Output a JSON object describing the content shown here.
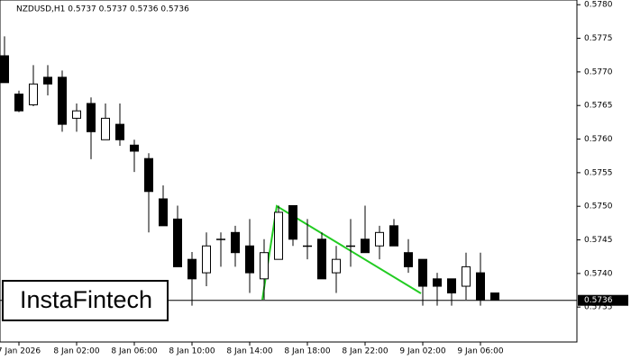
{
  "chart_data": {
    "type": "candlestick",
    "title": "NZDUSD,H1  0.5737 0.5737 0.5736 0.5736",
    "categories": [
      null,
      "7 Jan 2026",
      null,
      null,
      null,
      "8 Jan 02:00",
      null,
      null,
      null,
      "8 Jan 06:00",
      null,
      null,
      null,
      "8 Jan 10:00",
      null,
      null,
      null,
      "8 Jan 14:00",
      null,
      null,
      null,
      "8 Jan 18:00",
      null,
      null,
      null,
      "8 Jan 22:00",
      null,
      null,
      null,
      "9 Jan 02:00",
      null,
      null,
      null,
      "9 Jan 06:00",
      null
    ],
    "open": [
      0.57724,
      0.57667,
      0.57651,
      0.57692,
      0.57692,
      0.57631,
      0.57653,
      0.57599,
      0.57622,
      0.57591,
      0.57571,
      0.57511,
      0.57481,
      0.57421,
      0.57401,
      0.57451,
      0.57461,
      0.57441,
      0.57392,
      0.57421,
      0.57501,
      0.57441,
      0.57451,
      0.57401,
      0.57441,
      0.57451,
      0.57441,
      0.57471,
      0.57431,
      0.57421,
      0.57392,
      0.57392,
      0.57381,
      0.57401,
      0.57371
    ],
    "high": [
      0.57753,
      0.57672,
      0.5771,
      0.5771,
      0.57702,
      0.57653,
      0.57662,
      0.57653,
      0.57653,
      0.57599,
      0.57579,
      0.57531,
      0.57501,
      0.57432,
      0.57461,
      0.57461,
      0.57471,
      0.57481,
      0.57451,
      0.57501,
      0.57501,
      0.57481,
      0.57461,
      0.57441,
      0.57481,
      0.57501,
      0.57471,
      0.57481,
      0.57451,
      0.57421,
      0.57401,
      0.57392,
      0.57431,
      0.57431,
      0.57371
    ],
    "low": [
      0.57684,
      0.5764,
      0.57649,
      0.57665,
      0.57611,
      0.57611,
      0.5757,
      0.57599,
      0.5759,
      0.57551,
      0.57461,
      0.57471,
      0.5741,
      0.57352,
      0.57381,
      0.5741,
      0.5741,
      0.57371,
      0.57361,
      0.57421,
      0.57441,
      0.57421,
      0.57392,
      0.57371,
      0.5741,
      0.57431,
      0.57421,
      0.57441,
      0.57401,
      0.57352,
      0.57352,
      0.57352,
      0.57361,
      0.57352,
      0.57361
    ],
    "close": [
      0.57684,
      0.57642,
      0.57682,
      0.57682,
      0.57622,
      0.57642,
      0.57611,
      0.57631,
      0.57599,
      0.57582,
      0.57522,
      0.57471,
      0.5741,
      0.57392,
      0.57441,
      0.57451,
      0.57431,
      0.57401,
      0.57431,
      0.57491,
      0.57451,
      0.57441,
      0.57392,
      0.57421,
      0.57441,
      0.57431,
      0.57461,
      0.57441,
      0.5741,
      0.57381,
      0.57381,
      0.57371,
      0.5741,
      0.57361,
      0.57361
    ],
    "up_color": "#ffffff",
    "down_color": "#000000",
    "ylim": [
      0.57298,
      0.57807
    ],
    "yticks": [
      0.5735,
      {
        "value": 0.574,
        "label": "0.5740"
      },
      0.5745,
      {
        "value": 0.575,
        "label": "0.5750"
      },
      0.5755,
      {
        "value": 0.576,
        "label": "0.5760"
      },
      0.5765,
      {
        "value": 0.577,
        "label": "0.5770"
      },
      0.5775,
      {
        "value": 0.578,
        "label": "0.5780"
      }
    ],
    "current_price": 0.5736
  },
  "logo": "InstaFintech"
}
